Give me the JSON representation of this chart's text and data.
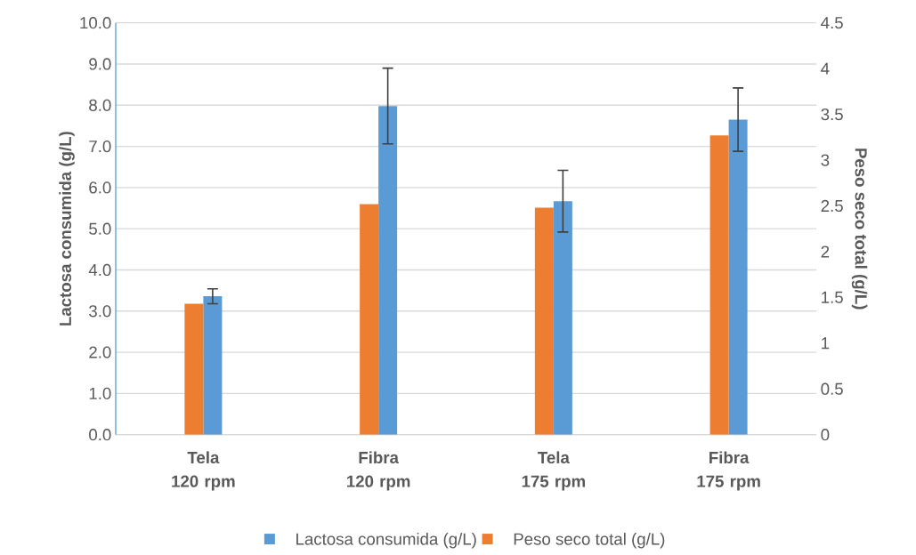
{
  "chart_data": {
    "type": "bar",
    "ylabel": "Lactosa consumida (g/L)",
    "y2label": "Peso seco total (g/L)",
    "categories": [
      "Tela 120 rpm",
      "Fibra 120 rpm",
      "Tela 175 rpm",
      "Fibra 175 rpm"
    ],
    "series": [
      {
        "name": "Lactosa consumida (g/L)",
        "color": "#5b9bd5",
        "values": [
          3.36,
          7.98,
          5.67,
          7.65
        ],
        "errors": [
          0.18,
          0.92,
          0.75,
          0.77
        ]
      },
      {
        "name": "Peso seco total (g/L)",
        "color": "#ed7d31",
        "values": [
          1.43,
          2.52,
          2.48,
          3.27
        ],
        "axis": "y2"
      }
    ],
    "ylim": [
      0,
      10
    ],
    "yticks": [
      {
        "value": 0,
        "label": "0.0"
      },
      {
        "value": 1,
        "label": "1.0"
      },
      {
        "value": 2,
        "label": "2.0"
      },
      {
        "value": 3,
        "label": "3.0"
      },
      {
        "value": 4,
        "label": "4.0"
      },
      {
        "value": 5,
        "label": "5.0"
      },
      {
        "value": 6,
        "label": "6.0"
      },
      {
        "value": 7,
        "label": "7.0"
      },
      {
        "value": 8,
        "label": "8.0"
      },
      {
        "value": 9,
        "label": "9.0"
      },
      {
        "value": 10,
        "label": "10.0"
      }
    ],
    "y2lim": [
      0,
      4.5
    ],
    "y2ticks": [
      0,
      0.5,
      1,
      1.5,
      2,
      2.5,
      3,
      3.5,
      4,
      4.5
    ],
    "grid": "y",
    "legend": "bottom"
  }
}
